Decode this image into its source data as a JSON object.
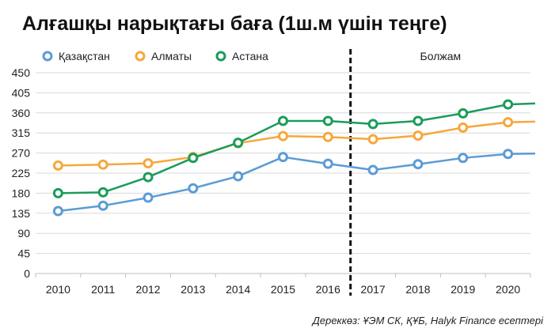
{
  "chart_data": {
    "type": "line",
    "title": "Алғашқы нарықтағы баға  (1ш.м үшін теңге)",
    "x": [
      "2010",
      "2011",
      "2012",
      "2013",
      "2014",
      "2015",
      "2016",
      "2017",
      "2018",
      "2019",
      "2020"
    ],
    "yticks": [
      "0",
      "45",
      "90",
      "135",
      "180",
      "225",
      "270",
      "315",
      "360",
      "405",
      "450"
    ],
    "ylim": [
      0,
      450
    ],
    "grid": true,
    "legend": "top-left",
    "forecast_label": "Болжам",
    "forecast_start": "2017",
    "source": "Дереккөз: ҰЭМ СК, ҚҰБ, Halyk Finance есептері",
    "series": [
      {
        "name": "Қазақстан",
        "color": "#5b9bd5",
        "values": [
          140,
          152,
          170,
          191,
          218,
          261,
          246,
          232,
          245,
          259,
          268
        ]
      },
      {
        "name": "Алматы",
        "color": "#f5a83a",
        "values": [
          242,
          244,
          247,
          261,
          292,
          308,
          306,
          301,
          309,
          327,
          339
        ]
      },
      {
        "name": "Астана",
        "color": "#1a9c5b",
        "values": [
          180,
          182,
          216,
          259,
          293,
          342,
          342,
          335,
          342,
          359,
          379
        ]
      }
    ]
  }
}
